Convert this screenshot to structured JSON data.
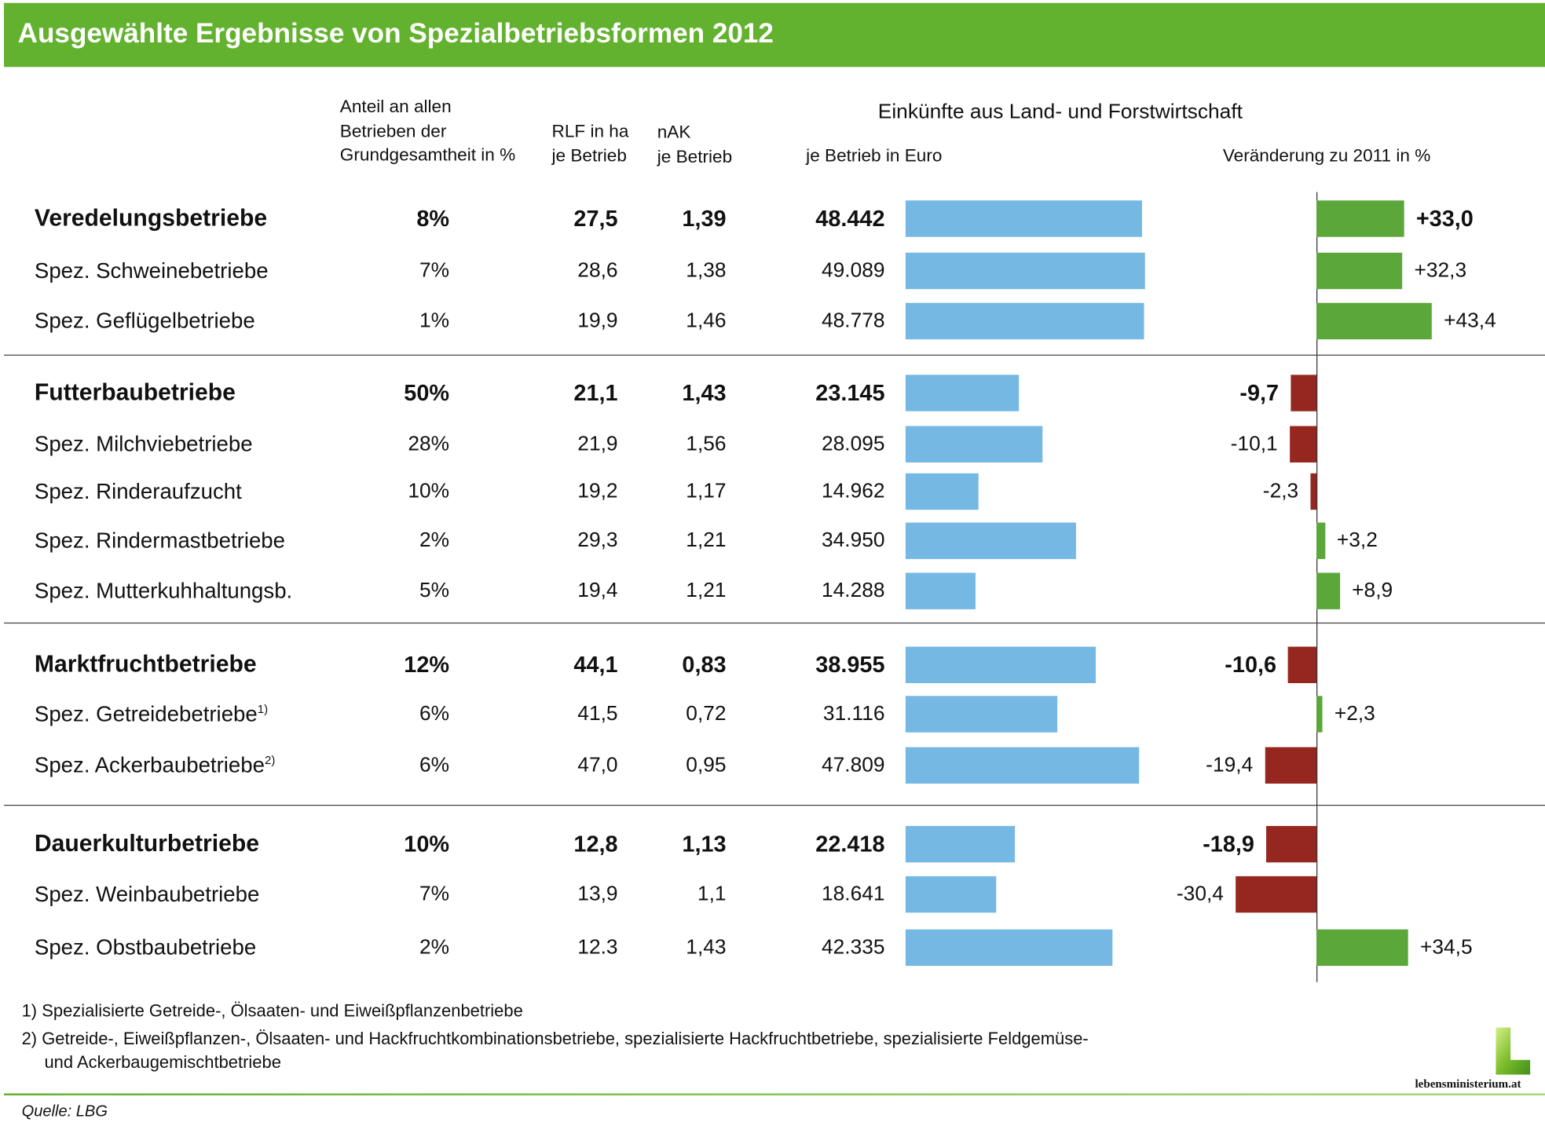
{
  "title": "Ausgewählte Ergebnisse von Spezialbetriebsformen 2012",
  "headers": {
    "anteil": [
      "Anteil an allen",
      "Betrieben der",
      "Grundgesamtheit in %"
    ],
    "rlf": [
      "RLF in ha",
      "je Betrieb"
    ],
    "nak": [
      "nAK",
      "je Betrieb"
    ],
    "einkuenfte": "Einkünfte aus Land- und Forstwirtschaft",
    "je_betrieb_euro": "je Betrieb in Euro",
    "veraenderung": "Veränderung zu 2011 in %"
  },
  "colors": {
    "brand": "#63b22f",
    "income_bar": "#74b8e3",
    "positive": "#5ba73a",
    "negative": "#96271f"
  },
  "chart_data": {
    "type": "table",
    "title": "Ausgewählte Ergebnisse von Spezialbetriebsformen 2012",
    "rows": [
      {
        "label": "Veredelungsbetriebe",
        "bold": true,
        "sup": "",
        "pct": "8%",
        "rlf": "27,5",
        "nak": "1,39",
        "income": 48442,
        "income_label": "48.442",
        "change": 33.0,
        "change_label": "+33,0"
      },
      {
        "label": "Spez. Schweinebetriebe",
        "bold": false,
        "sup": "",
        "pct": "7%",
        "rlf": "28,6",
        "nak": "1,38",
        "income": 49089,
        "income_label": "49.089",
        "change": 32.3,
        "change_label": "+32,3"
      },
      {
        "label": "Spez. Geflügelbetriebe",
        "bold": false,
        "sup": "",
        "pct": "1%",
        "rlf": "19,9",
        "nak": "1,46",
        "income": 48778,
        "income_label": "48.778",
        "change": 43.4,
        "change_label": "+43,4"
      },
      {
        "label": "Futterbaubetriebe",
        "bold": true,
        "sup": "",
        "pct": "50%",
        "rlf": "21,1",
        "nak": "1,43",
        "income": 23145,
        "income_label": "23.145",
        "change": -9.7,
        "change_label": "-9,7"
      },
      {
        "label": "Spez. Milchviebetriebe",
        "bold": false,
        "sup": "",
        "pct": "28%",
        "rlf": "21,9",
        "nak": "1,56",
        "income": 28095,
        "income_label": "28.095",
        "change": -10.1,
        "change_label": "-10,1"
      },
      {
        "label": "Spez. Rinderaufzucht",
        "bold": false,
        "sup": "",
        "pct": "10%",
        "rlf": "19,2",
        "nak": "1,17",
        "income": 14962,
        "income_label": "14.962",
        "change": -2.3,
        "change_label": "-2,3"
      },
      {
        "label": "Spez. Rindermastbetriebe",
        "bold": false,
        "sup": "",
        "pct": "2%",
        "rlf": "29,3",
        "nak": "1,21",
        "income": 34950,
        "income_label": "34.950",
        "change": 3.2,
        "change_label": "+3,2"
      },
      {
        "label": "Spez. Mutterkuhhaltungsb.",
        "bold": false,
        "sup": "",
        "pct": "5%",
        "rlf": "19,4",
        "nak": "1,21",
        "income": 14288,
        "income_label": "14.288",
        "change": 8.9,
        "change_label": "+8,9"
      },
      {
        "label": "Marktfruchtbetriebe",
        "bold": true,
        "sup": "",
        "pct": "12%",
        "rlf": "44,1",
        "nak": "0,83",
        "income": 38955,
        "income_label": "38.955",
        "change": -10.6,
        "change_label": "-10,6"
      },
      {
        "label": "Spez. Getreidebetriebe",
        "bold": false,
        "sup": "1)",
        "pct": "6%",
        "rlf": "41,5",
        "nak": "0,72",
        "income": 31116,
        "income_label": "31.116",
        "change": 2.3,
        "change_label": "+2,3"
      },
      {
        "label": "Spez. Ackerbaubetriebe",
        "bold": false,
        "sup": "2)",
        "pct": "6%",
        "rlf": "47,0",
        "nak": "0,95",
        "income": 47809,
        "income_label": "47.809",
        "change": -19.4,
        "change_label": "-19,4"
      },
      {
        "label": "Dauerkulturbetriebe",
        "bold": true,
        "sup": "",
        "pct": "10%",
        "rlf": "12,8",
        "nak": "1,13",
        "income": 22418,
        "income_label": "22.418",
        "change": -18.9,
        "change_label": "-18,9"
      },
      {
        "label": "Spez. Weinbaubetriebe",
        "bold": false,
        "sup": "",
        "pct": "7%",
        "rlf": "13,9",
        "nak": "1,1",
        "income": 18641,
        "income_label": "18.641",
        "change": -30.4,
        "change_label": "-30,4"
      },
      {
        "label": "Spez. Obstbaubetriebe",
        "bold": false,
        "sup": "",
        "pct": "2%",
        "rlf": "12.3",
        "nak": "1,43",
        "income": 42335,
        "income_label": "42.335",
        "change": 34.5,
        "change_label": "+34,5"
      }
    ]
  },
  "footnotes": [
    "1) Spezialisierte Getreide-, Ölsaaten- und Eiweißpflanzenbetriebe",
    "2) Getreide-, Eiweißpflanzen-, Ölsaaten- und Hackfruchtkombinationsbetriebe, spezialisierte Hackfruchtbetriebe, spezialisierte Feldgemüse-",
    "und Ackerbaugemischtbetriebe"
  ],
  "source": "Quelle: LBG",
  "logo_text": "lebensministerium.at"
}
